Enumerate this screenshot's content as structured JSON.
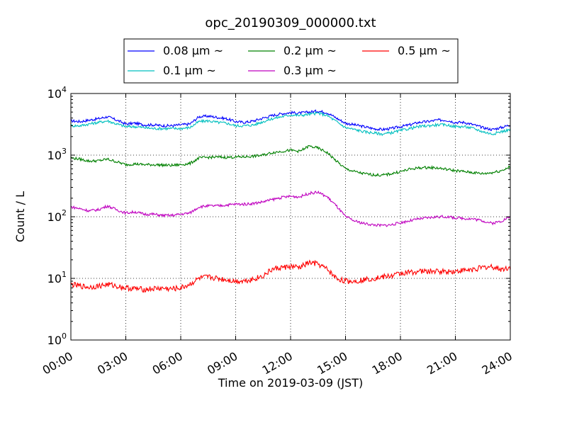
{
  "chart_data": {
    "type": "line",
    "title": "opc_20190309_000000.txt",
    "xlabel": "Time on 2019-03-09 (JST)",
    "ylabel": "Count / L",
    "y_scale": "log",
    "ylim": [
      1,
      10000
    ],
    "xlim": [
      "00:00",
      "24:00"
    ],
    "x_unit": "hours",
    "x_ticks": [
      {
        "h": 0,
        "label": "00:00"
      },
      {
        "h": 3,
        "label": "03:00"
      },
      {
        "h": 6,
        "label": "06:00"
      },
      {
        "h": 9,
        "label": "09:00"
      },
      {
        "h": 12,
        "label": "12:00"
      },
      {
        "h": 15,
        "label": "15:00"
      },
      {
        "h": 18,
        "label": "18:00"
      },
      {
        "h": 21,
        "label": "21:00"
      },
      {
        "h": 24,
        "label": "24:00"
      }
    ],
    "y_ticks": [
      {
        "v": 1,
        "exp": "0"
      },
      {
        "v": 10,
        "exp": "1"
      },
      {
        "v": 100,
        "exp": "2"
      },
      {
        "v": 1000,
        "exp": "3"
      },
      {
        "v": 10000,
        "exp": "4"
      }
    ],
    "y_tick_base": "10",
    "grid": true,
    "legend_position": "top-center",
    "series": [
      {
        "name": "0.08 μm ~",
        "color": "#0000ff",
        "x": [
          0,
          0.5,
          1,
          1.5,
          2,
          2.5,
          3,
          3.5,
          4,
          4.5,
          5,
          5.5,
          6,
          6.5,
          7,
          7.5,
          8,
          8.5,
          9,
          9.5,
          10,
          10.5,
          11,
          11.5,
          12,
          12.5,
          13,
          13.5,
          14,
          14.5,
          15,
          15.5,
          16,
          16.5,
          17,
          17.5,
          18,
          18.5,
          19,
          19.5,
          20,
          20.5,
          21,
          21.5,
          22,
          22.5,
          23,
          23.5,
          24
        ],
        "y": [
          3600,
          3500,
          3700,
          3900,
          4200,
          3700,
          3200,
          3300,
          3100,
          3100,
          3000,
          3000,
          3100,
          3200,
          4200,
          4300,
          4100,
          3900,
          3500,
          3400,
          3600,
          4000,
          4400,
          4700,
          4900,
          4800,
          5000,
          5200,
          4900,
          4000,
          3300,
          3100,
          2900,
          2700,
          2600,
          2700,
          2900,
          3100,
          3400,
          3500,
          3700,
          3700,
          3400,
          3400,
          3100,
          2800,
          2600,
          2800,
          3100
        ]
      },
      {
        "name": "0.1 μm ~",
        "color": "#00bfbf",
        "x": [
          0,
          0.5,
          1,
          1.5,
          2,
          2.5,
          3,
          3.5,
          4,
          4.5,
          5,
          5.5,
          6,
          6.5,
          7,
          7.5,
          8,
          8.5,
          9,
          9.5,
          10,
          10.5,
          11,
          11.5,
          12,
          12.5,
          13,
          13.5,
          14,
          14.5,
          15,
          15.5,
          16,
          16.5,
          17,
          17.5,
          18,
          18.5,
          19,
          19.5,
          20,
          20.5,
          21,
          21.5,
          22,
          22.5,
          23,
          23.5,
          24
        ],
        "y": [
          3000,
          3000,
          3200,
          3400,
          3600,
          3200,
          2900,
          2900,
          2800,
          2700,
          2700,
          2700,
          2700,
          2800,
          3500,
          3600,
          3400,
          3300,
          3000,
          3000,
          3100,
          3500,
          3900,
          4200,
          4500,
          4400,
          4600,
          4800,
          4400,
          3500,
          2800,
          2600,
          2400,
          2300,
          2200,
          2300,
          2500,
          2700,
          2900,
          3000,
          3100,
          3100,
          2900,
          2900,
          2700,
          2400,
          2200,
          2400,
          2600
        ]
      },
      {
        "name": "0.2 μm ~",
        "color": "#008000",
        "x": [
          0,
          0.5,
          1,
          1.5,
          2,
          2.5,
          3,
          3.5,
          4,
          4.5,
          5,
          5.5,
          6,
          6.5,
          7,
          7.5,
          8,
          8.5,
          9,
          9.5,
          10,
          10.5,
          11,
          11.5,
          12,
          12.5,
          13,
          13.5,
          14,
          14.5,
          15,
          15.5,
          16,
          16.5,
          17,
          17.5,
          18,
          18.5,
          19,
          19.5,
          20,
          20.5,
          21,
          21.5,
          22,
          22.5,
          23,
          23.5,
          24
        ],
        "y": [
          900,
          860,
          800,
          810,
          860,
          780,
          700,
          720,
          700,
          700,
          690,
          680,
          700,
          730,
          900,
          920,
          930,
          920,
          930,
          940,
          960,
          1000,
          1100,
          1150,
          1200,
          1150,
          1400,
          1300,
          1100,
          800,
          600,
          540,
          500,
          480,
          470,
          500,
          540,
          590,
          620,
          630,
          620,
          590,
          560,
          540,
          520,
          500,
          520,
          560,
          650
        ]
      },
      {
        "name": "0.3 μm ~",
        "color": "#bf00bf",
        "x": [
          0,
          0.5,
          1,
          1.5,
          2,
          2.5,
          3,
          3.5,
          4,
          4.5,
          5,
          5.5,
          6,
          6.5,
          7,
          7.5,
          8,
          8.5,
          9,
          9.5,
          10,
          10.5,
          11,
          11.5,
          12,
          12.5,
          13,
          13.5,
          14,
          14.5,
          15,
          15.5,
          16,
          16.5,
          17,
          17.5,
          18,
          18.5,
          19,
          19.5,
          20,
          20.5,
          21,
          21.5,
          22,
          22.5,
          23,
          23.5,
          24
        ],
        "y": [
          145,
          135,
          125,
          130,
          150,
          130,
          115,
          120,
          110,
          110,
          105,
          105,
          110,
          115,
          145,
          150,
          150,
          155,
          160,
          160,
          165,
          175,
          190,
          205,
          215,
          210,
          240,
          250,
          210,
          150,
          100,
          85,
          78,
          74,
          72,
          74,
          80,
          86,
          92,
          96,
          100,
          100,
          96,
          94,
          92,
          86,
          78,
          85,
          100
        ]
      },
      {
        "name": "0.5 μm ~",
        "color": "#ff0000",
        "x": [
          0,
          0.5,
          1,
          1.5,
          2,
          2.5,
          3,
          3.5,
          4,
          4.5,
          5,
          5.5,
          6,
          6.5,
          7,
          7.5,
          8,
          8.5,
          9,
          9.5,
          10,
          10.5,
          11,
          11.5,
          12,
          12.5,
          13,
          13.5,
          14,
          14.5,
          15,
          15.5,
          16,
          16.5,
          17,
          17.5,
          18,
          18.5,
          19,
          19.5,
          20,
          20.5,
          21,
          21.5,
          22,
          22.5,
          23,
          23.5,
          24
        ],
        "y": [
          8,
          7.5,
          7.2,
          7.5,
          8,
          7.5,
          7,
          6.8,
          6.6,
          6.8,
          6.9,
          6.7,
          7,
          8,
          10,
          10.5,
          10,
          9.5,
          9,
          9.2,
          9.8,
          11,
          14,
          15,
          15.5,
          15,
          18,
          17,
          14,
          10,
          9,
          9,
          9.5,
          10,
          10.5,
          11,
          12,
          12.5,
          13,
          13,
          13,
          13,
          13,
          13.5,
          14,
          15,
          15.5,
          14,
          15
        ]
      }
    ]
  }
}
